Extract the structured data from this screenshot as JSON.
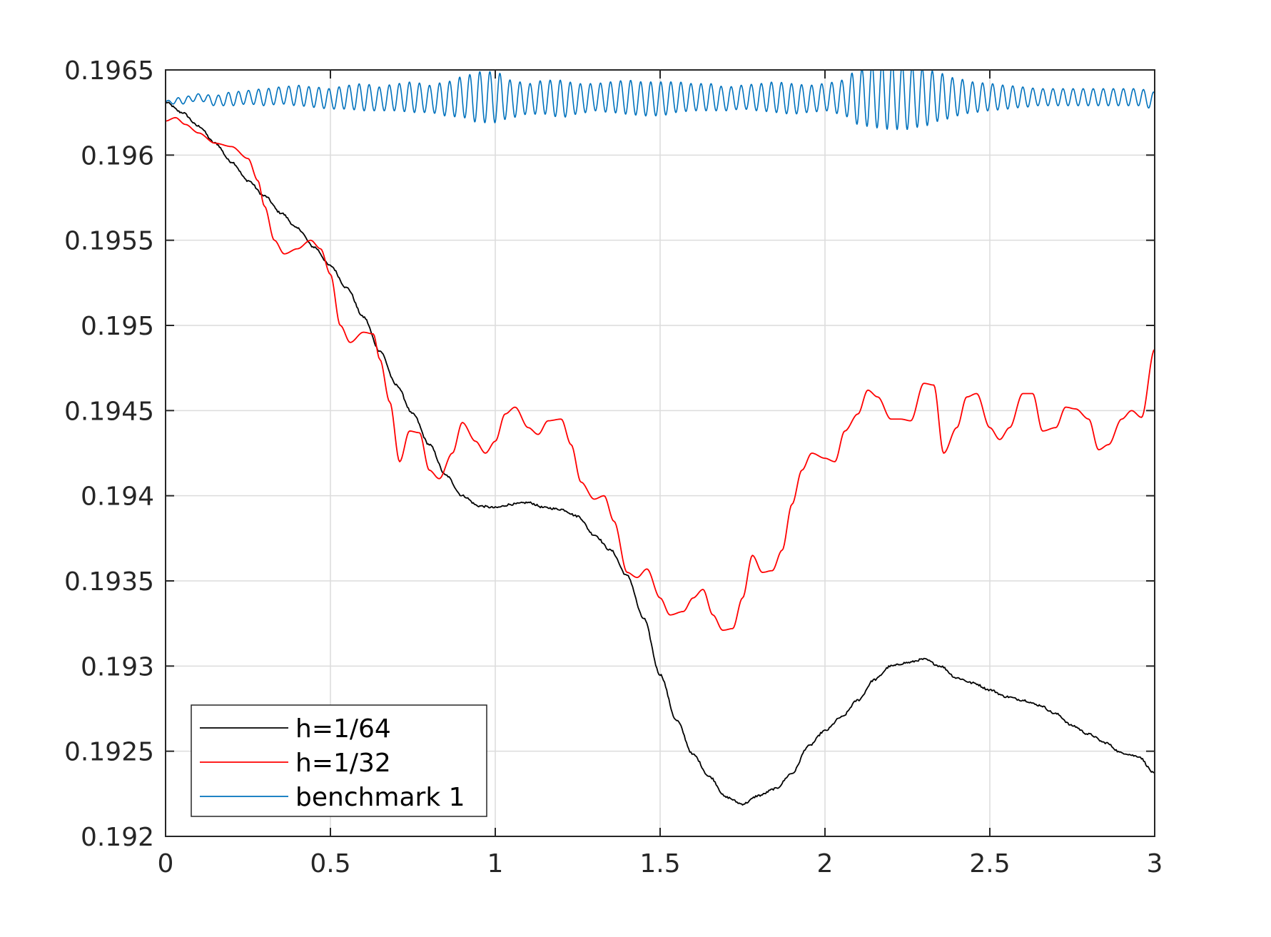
{
  "chart_data": {
    "type": "line",
    "title": "",
    "xlabel": "",
    "ylabel": "",
    "xlim": [
      0,
      3
    ],
    "ylim": [
      0.192,
      0.1965
    ],
    "grid": true,
    "legend_position": "bottom-left",
    "x_ticks": [
      0,
      0.5,
      1,
      1.5,
      2,
      2.5,
      3
    ],
    "x_tick_labels": [
      "0",
      "0.5",
      "1",
      "1.5",
      "2",
      "2.5",
      "3"
    ],
    "y_ticks": [
      0.192,
      0.1925,
      0.193,
      0.1935,
      0.194,
      0.1945,
      0.195,
      0.1955,
      0.196,
      0.1965
    ],
    "y_tick_labels": [
      "0.192",
      "0.1925",
      "0.193",
      "0.1935",
      "0.194",
      "0.1945",
      "0.195",
      "0.1955",
      "0.196",
      "0.1965"
    ],
    "series": [
      {
        "name": "h=1/64",
        "color": "#000000",
        "x": [
          0,
          0.05,
          0.1,
          0.15,
          0.2,
          0.25,
          0.3,
          0.35,
          0.4,
          0.45,
          0.5,
          0.55,
          0.6,
          0.65,
          0.7,
          0.75,
          0.8,
          0.85,
          0.9,
          0.95,
          1.0,
          1.05,
          1.1,
          1.15,
          1.2,
          1.25,
          1.3,
          1.35,
          1.4,
          1.45,
          1.5,
          1.55,
          1.6,
          1.65,
          1.7,
          1.75,
          1.8,
          1.85,
          1.9,
          1.95,
          2.0,
          2.05,
          2.1,
          2.15,
          2.2,
          2.25,
          2.3,
          2.35,
          2.4,
          2.45,
          2.5,
          2.55,
          2.6,
          2.65,
          2.7,
          2.75,
          2.8,
          2.85,
          2.9,
          2.95,
          3.0
        ],
        "y": [
          0.19631,
          0.19625,
          0.19617,
          0.19607,
          0.19596,
          0.19585,
          0.19576,
          0.19566,
          0.19557,
          0.19546,
          0.19535,
          0.19522,
          0.19505,
          0.19485,
          0.19465,
          0.19448,
          0.1943,
          0.19412,
          0.194,
          0.19394,
          0.19393,
          0.19395,
          0.19396,
          0.19393,
          0.19392,
          0.19388,
          0.19377,
          0.19368,
          0.19353,
          0.19328,
          0.19295,
          0.19268,
          0.19248,
          0.19235,
          0.19223,
          0.19219,
          0.19224,
          0.19228,
          0.19237,
          0.19253,
          0.19262,
          0.1927,
          0.1928,
          0.19292,
          0.193,
          0.19302,
          0.19304,
          0.193,
          0.19293,
          0.1929,
          0.19286,
          0.19282,
          0.1928,
          0.19277,
          0.19272,
          0.19265,
          0.1926,
          0.19255,
          0.19249,
          0.19247,
          0.19237
        ]
      },
      {
        "name": "h=1/32",
        "color": "#ff0000",
        "x": [
          0,
          0.03,
          0.06,
          0.1,
          0.15,
          0.2,
          0.25,
          0.28,
          0.3,
          0.33,
          0.36,
          0.4,
          0.44,
          0.47,
          0.5,
          0.53,
          0.56,
          0.6,
          0.63,
          0.65,
          0.68,
          0.71,
          0.74,
          0.77,
          0.8,
          0.83,
          0.87,
          0.9,
          0.94,
          0.97,
          1.0,
          1.03,
          1.06,
          1.1,
          1.13,
          1.16,
          1.2,
          1.23,
          1.26,
          1.3,
          1.33,
          1.36,
          1.4,
          1.43,
          1.46,
          1.5,
          1.53,
          1.57,
          1.6,
          1.63,
          1.66,
          1.69,
          1.72,
          1.75,
          1.78,
          1.81,
          1.84,
          1.87,
          1.9,
          1.93,
          1.96,
          2.0,
          2.03,
          2.06,
          2.1,
          2.13,
          2.16,
          2.2,
          2.23,
          2.26,
          2.3,
          2.33,
          2.36,
          2.4,
          2.43,
          2.46,
          2.5,
          2.53,
          2.56,
          2.6,
          2.63,
          2.66,
          2.7,
          2.73,
          2.76,
          2.8,
          2.83,
          2.86,
          2.9,
          2.93,
          2.96,
          3.0
        ],
        "y": [
          0.1962,
          0.19622,
          0.19618,
          0.19613,
          0.19607,
          0.19605,
          0.19598,
          0.19585,
          0.1957,
          0.1955,
          0.19542,
          0.19545,
          0.1955,
          0.19545,
          0.1953,
          0.195,
          0.1949,
          0.19496,
          0.19495,
          0.1948,
          0.19455,
          0.1942,
          0.19438,
          0.19437,
          0.19415,
          0.1941,
          0.19425,
          0.19443,
          0.19432,
          0.19425,
          0.19432,
          0.19448,
          0.19452,
          0.1944,
          0.19436,
          0.19444,
          0.19445,
          0.1943,
          0.19408,
          0.19398,
          0.194,
          0.19385,
          0.19355,
          0.19352,
          0.19357,
          0.1934,
          0.1933,
          0.19332,
          0.1934,
          0.19345,
          0.1933,
          0.19321,
          0.19322,
          0.1934,
          0.19365,
          0.19355,
          0.19356,
          0.19368,
          0.19395,
          0.19415,
          0.19425,
          0.19422,
          0.1942,
          0.19438,
          0.19448,
          0.19462,
          0.19458,
          0.19445,
          0.19445,
          0.19444,
          0.19466,
          0.19465,
          0.19425,
          0.1944,
          0.19458,
          0.1946,
          0.1944,
          0.19433,
          0.1944,
          0.1946,
          0.1946,
          0.19438,
          0.1944,
          0.19452,
          0.19451,
          0.19445,
          0.19427,
          0.1943,
          0.19445,
          0.1945,
          0.19446,
          0.19486
        ]
      },
      {
        "name": "benchmark 1",
        "color": "#0072bd",
        "x": [
          0,
          0.05,
          0.1,
          0.15,
          0.2,
          0.25,
          0.3,
          0.35,
          0.4,
          0.45,
          0.5,
          0.55,
          0.6,
          0.65,
          0.7,
          0.75,
          0.8,
          0.85,
          0.9,
          0.95,
          1.0,
          1.05,
          1.1,
          1.15,
          1.2,
          1.25,
          1.3,
          1.35,
          1.4,
          1.45,
          1.5,
          1.55,
          1.6,
          1.65,
          1.7,
          1.75,
          1.8,
          1.85,
          1.9,
          1.95,
          2.0,
          2.05,
          2.1,
          2.15,
          2.2,
          2.25,
          2.3,
          2.35,
          2.4,
          2.45,
          2.5,
          2.55,
          2.6,
          2.65,
          2.7,
          2.75,
          2.8,
          2.85,
          2.9,
          2.95,
          3.0
        ],
        "y": [
          0.19631,
          0.19632,
          0.19634,
          0.19632,
          0.19633,
          0.19634,
          0.19634,
          0.19635,
          0.19635,
          0.19634,
          0.19633,
          0.19634,
          0.19634,
          0.19633,
          0.19634,
          0.19634,
          0.19633,
          0.19633,
          0.19634,
          0.19634,
          0.19634,
          0.19633,
          0.19633,
          0.19634,
          0.19633,
          0.19633,
          0.19634,
          0.19634,
          0.19634,
          0.19633,
          0.19633,
          0.19634,
          0.19634,
          0.19634,
          0.19633,
          0.19634,
          0.19634,
          0.19634,
          0.19633,
          0.19633,
          0.19634,
          0.19634,
          0.19634,
          0.19635,
          0.19635,
          0.19634,
          0.19634,
          0.19634,
          0.19634,
          0.19634,
          0.19634,
          0.19634,
          0.19634,
          0.19634,
          0.19634,
          0.19634,
          0.19634,
          0.19634,
          0.19634,
          0.19634,
          0.19632
        ],
        "amplitude": [
          1e-05,
          2e-05,
          2e-05,
          3e-05,
          4e-05,
          4e-05,
          5e-05,
          5e-05,
          6e-05,
          6e-05,
          6e-05,
          7e-05,
          8e-05,
          7e-05,
          8e-05,
          9e-05,
          8e-05,
          0.0001,
          0.00012,
          0.00015,
          0.00015,
          0.00011,
          9e-05,
          0.0001,
          0.00011,
          9e-05,
          8e-05,
          9e-05,
          0.0001,
          0.0001,
          0.0001,
          9e-05,
          8e-05,
          8e-05,
          7e-05,
          7e-05,
          8e-05,
          9e-05,
          9e-05,
          8e-05,
          8e-05,
          0.0001,
          0.00016,
          0.00019,
          0.0002,
          0.00019,
          0.00017,
          0.00014,
          0.00011,
          9e-05,
          8e-05,
          7e-05,
          6e-05,
          5e-05,
          5e-05,
          5e-05,
          5e-05,
          5e-05,
          5e-05,
          5e-05,
          5e-05
        ]
      }
    ]
  }
}
